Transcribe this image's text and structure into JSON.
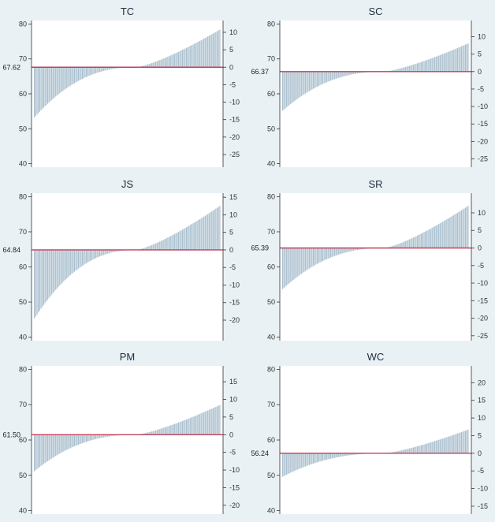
{
  "chart_data": [
    {
      "type": "bar",
      "title": "TC",
      "mean": 67.62,
      "mean_label": "67.62",
      "left_ticks": [
        40,
        50,
        60,
        70,
        80
      ],
      "left_ylim": [
        39,
        81
      ],
      "right_ticks": [
        10,
        5,
        0,
        -5,
        -10,
        -15,
        -20,
        -25
      ],
      "n_bars": 140,
      "min_value": 53,
      "max_value": 78.5,
      "bar_color": "#a9bfce",
      "line_color": "#c0405a"
    },
    {
      "type": "bar",
      "title": "SC",
      "mean": 66.37,
      "mean_label": "66.37",
      "left_ticks": [
        40,
        50,
        60,
        70,
        80
      ],
      "left_ylim": [
        39,
        81
      ],
      "right_ticks": [
        10,
        5,
        0,
        -5,
        -10,
        -15,
        -20,
        -25
      ],
      "n_bars": 140,
      "min_value": 55,
      "max_value": 74.5,
      "bar_color": "#a9bfce",
      "line_color": "#c0405a"
    },
    {
      "type": "bar",
      "title": "JS",
      "mean": 64.84,
      "mean_label": "64.84",
      "left_ticks": [
        40,
        50,
        60,
        70,
        80
      ],
      "left_ylim": [
        39,
        81
      ],
      "right_ticks": [
        15,
        10,
        5,
        0,
        -5,
        -10,
        -15,
        -20
      ],
      "n_bars": 140,
      "min_value": 45,
      "max_value": 77.5,
      "bar_color": "#a9bfce",
      "line_color": "#c0405a"
    },
    {
      "type": "bar",
      "title": "SR",
      "mean": 65.39,
      "mean_label": "65.39",
      "left_ticks": [
        40,
        50,
        60,
        70,
        80
      ],
      "left_ylim": [
        39,
        81
      ],
      "right_ticks": [
        10,
        5,
        0,
        -5,
        -10,
        -15,
        -20,
        -25
      ],
      "n_bars": 140,
      "min_value": 53.5,
      "max_value": 77.5,
      "bar_color": "#a9bfce",
      "line_color": "#c0405a"
    },
    {
      "type": "bar",
      "title": "PM",
      "mean": 61.5,
      "mean_label": "61.50",
      "left_ticks": [
        40,
        50,
        60,
        70,
        80
      ],
      "left_ylim": [
        39,
        81
      ],
      "right_ticks": [
        15,
        10,
        5,
        0,
        -5,
        -10,
        -15,
        -20
      ],
      "n_bars": 140,
      "min_value": 51,
      "max_value": 70,
      "bar_color": "#a9bfce",
      "line_color": "#c0405a"
    },
    {
      "type": "bar",
      "title": "WC",
      "mean": 56.24,
      "mean_label": "56.24",
      "left_ticks": [
        40,
        50,
        60,
        70,
        80
      ],
      "left_ylim": [
        39,
        81
      ],
      "right_ticks": [
        20,
        15,
        10,
        5,
        0,
        -5,
        -10,
        -15
      ],
      "n_bars": 140,
      "min_value": 49.5,
      "max_value": 63,
      "bar_color": "#a9bfce",
      "line_color": "#c0405a"
    }
  ]
}
